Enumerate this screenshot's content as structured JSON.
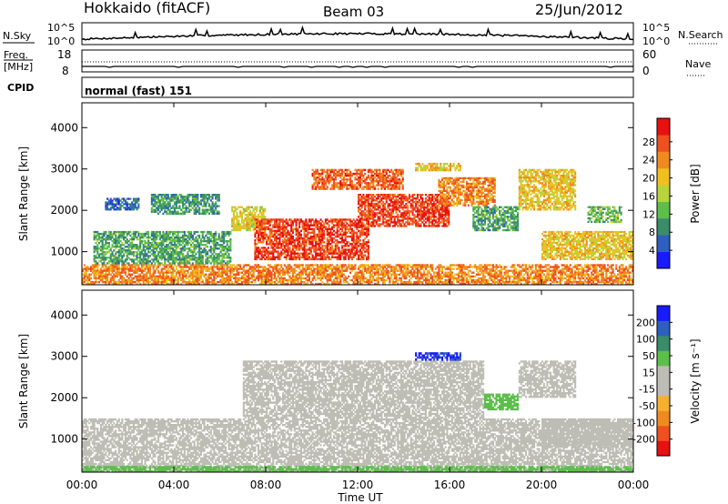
{
  "header": {
    "station": "Hokkaido (fitACF)",
    "beam": "Beam 03",
    "date": "25/Jun/2012"
  },
  "noise_panel": {
    "left_label": "N.Sky",
    "right_label": "N.Search",
    "left_ticks": [
      "10^5",
      "10^0"
    ],
    "right_ticks": [
      "10^5",
      "10^0"
    ]
  },
  "freq_panel": {
    "left_label_line1": "Freq.",
    "left_label_line2": "[MHz]",
    "right_label": "Nave",
    "left_ticks": [
      "18",
      "8"
    ],
    "right_ticks": [
      "60",
      "0"
    ]
  },
  "cpid_panel": {
    "label": "CPID",
    "text": "normal (fast) 151"
  },
  "colors": {
    "noise_line": "#000000",
    "power_scale": [
      "#1a1aff",
      "#2e5fbf",
      "#3a8c6a",
      "#5cbf4a",
      "#b8d43a",
      "#f0c020",
      "#f08a20",
      "#f05020",
      "#e81010"
    ],
    "velocity_scale": [
      "#e81010",
      "#f05020",
      "#f08a20",
      "#f5b030",
      "#bdbdb5",
      "#bdbdb5",
      "#5cbf4a",
      "#3a8c6a",
      "#2e5fbf",
      "#1a1aff"
    ]
  },
  "chart_data": [
    {
      "type": "heatmap",
      "name": "power",
      "ylabel": "Slant Range [km]",
      "xlabel": "",
      "xlim": [
        "00:00",
        "24:00"
      ],
      "ylim": [
        200,
        4600
      ],
      "x_ticks": [
        "00:00",
        "04:00",
        "08:00",
        "12:00",
        "16:00",
        "20:00",
        "00:00"
      ],
      "y_ticks": [
        "1000",
        "2000",
        "3000",
        "4000"
      ],
      "colorbar": {
        "label": "Power [dB]",
        "ticks": [
          "4",
          "8",
          "12",
          "16",
          "20",
          "24",
          "28"
        ],
        "range": [
          0,
          30
        ]
      },
      "regions": [
        {
          "t0": 0.0,
          "t1": 24.0,
          "r0": 200,
          "r1": 700,
          "value": 22
        },
        {
          "t0": 0.5,
          "t1": 6.5,
          "r0": 700,
          "r1": 1500,
          "value": 10
        },
        {
          "t0": 1.0,
          "t1": 2.5,
          "r0": 2000,
          "r1": 2300,
          "value": 6
        },
        {
          "t0": 3.0,
          "t1": 6.0,
          "r0": 1900,
          "r1": 2400,
          "value": 9
        },
        {
          "t0": 6.5,
          "t1": 8.0,
          "r0": 1500,
          "r1": 2100,
          "value": 17
        },
        {
          "t0": 7.5,
          "t1": 12.5,
          "r0": 800,
          "r1": 1800,
          "value": 26
        },
        {
          "t0": 10.0,
          "t1": 14.0,
          "r0": 2500,
          "r1": 3000,
          "value": 24
        },
        {
          "t0": 12.0,
          "t1": 16.0,
          "r0": 1600,
          "r1": 2400,
          "value": 26
        },
        {
          "t0": 14.5,
          "t1": 16.5,
          "r0": 2950,
          "r1": 3150,
          "value": 18
        },
        {
          "t0": 15.5,
          "t1": 18.0,
          "r0": 2100,
          "r1": 2800,
          "value": 22
        },
        {
          "t0": 17.0,
          "t1": 19.0,
          "r0": 1500,
          "r1": 2100,
          "value": 10
        },
        {
          "t0": 19.0,
          "t1": 21.5,
          "r0": 2000,
          "r1": 3000,
          "value": 18
        },
        {
          "t0": 20.0,
          "t1": 24.0,
          "r0": 800,
          "r1": 1500,
          "value": 18
        },
        {
          "t0": 22.0,
          "t1": 23.5,
          "r0": 1700,
          "r1": 2100,
          "value": 12
        }
      ]
    },
    {
      "type": "heatmap",
      "name": "velocity",
      "ylabel": "Slant Range [km]",
      "xlabel": "Time UT",
      "xlim": [
        "00:00",
        "24:00"
      ],
      "ylim": [
        200,
        4600
      ],
      "x_ticks": [
        "00:00",
        "04:00",
        "08:00",
        "12:00",
        "16:00",
        "20:00",
        "00:00"
      ],
      "y_ticks": [
        "1000",
        "2000",
        "3000",
        "4000"
      ],
      "colorbar": {
        "label": "Velocity [m s⁻¹]",
        "ticks": [
          "200",
          "100",
          "50",
          "15",
          "-15",
          "-50",
          "-100",
          "-200"
        ],
        "range": [
          -250,
          250
        ]
      },
      "regions": [
        {
          "t0": 0.0,
          "t1": 24.0,
          "r0": 200,
          "r1": 1500,
          "value": 0
        },
        {
          "t0": 0.0,
          "t1": 24.0,
          "r0": 200,
          "r1": 350,
          "value": 60
        },
        {
          "t0": 7.0,
          "t1": 17.5,
          "r0": 1500,
          "r1": 2900,
          "value": 0
        },
        {
          "t0": 14.5,
          "t1": 16.5,
          "r0": 2900,
          "r1": 3100,
          "value": 200
        },
        {
          "t0": 17.5,
          "t1": 19.0,
          "r0": 1700,
          "r1": 2100,
          "value": 60
        },
        {
          "t0": 19.0,
          "t1": 21.5,
          "r0": 2000,
          "r1": 2900,
          "value": 0
        },
        {
          "t0": 20.0,
          "t1": 24.0,
          "r0": 800,
          "r1": 1500,
          "value": -15
        }
      ]
    }
  ]
}
